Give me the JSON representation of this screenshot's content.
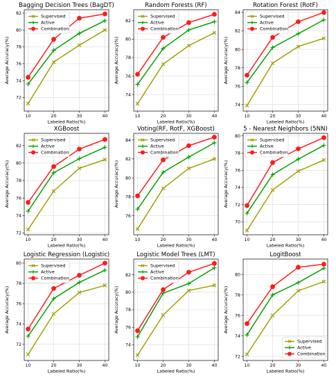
{
  "colors": {
    "Supervised": "#a0a000",
    "Active": "#00a000",
    "Combination": "#ff1a1a"
  },
  "chart_data": [
    {
      "type": "line",
      "title": "Bagging Decision Trees (BagDT)",
      "xlabel": "Labeled Ratio(%)",
      "ylabel": "Average Accuracy(%)",
      "x": [
        10,
        20,
        30,
        40
      ],
      "xticks": [
        10,
        20,
        30,
        40
      ],
      "ylim": [
        70.4,
        82.4
      ],
      "yticks": [
        72,
        74,
        76,
        78,
        80,
        82
      ],
      "grid": true,
      "legend": "top-left",
      "series": [
        {
          "name": "Supervised",
          "values": [
            71.3,
            76.2,
            78.2,
            80.0
          ]
        },
        {
          "name": "Active",
          "values": [
            73.6,
            77.6,
            79.6,
            81.1
          ]
        },
        {
          "name": "Combination",
          "values": [
            74.4,
            78.9,
            81.4,
            81.9
          ]
        }
      ]
    },
    {
      "type": "line",
      "title": "Random Forests (RF)",
      "xlabel": "Labeled Ratio(%)",
      "ylabel": "Average Accuracy(%)",
      "x": [
        10,
        20,
        30,
        40
      ],
      "xticks": [
        10,
        20,
        30,
        40
      ],
      "ylim": [
        72.2,
        83.2
      ],
      "yticks": [
        74,
        76,
        78,
        80,
        82
      ],
      "grid": true,
      "legend": "top-left",
      "series": [
        {
          "name": "Supervised",
          "values": [
            73.0,
            77.3,
            79.3,
            80.7
          ]
        },
        {
          "name": "Active",
          "values": [
            75.1,
            79.0,
            81.0,
            81.9
          ]
        },
        {
          "name": "Combination",
          "values": [
            76.2,
            80.2,
            81.8,
            82.7
          ]
        }
      ]
    },
    {
      "type": "line",
      "title": "Rotation Forest (RotF)",
      "xlabel": "Labeled Ratio(%)",
      "ylabel": "Average Accuracy(%)",
      "x": [
        10,
        20,
        30,
        40
      ],
      "xticks": [
        10,
        20,
        30,
        40
      ],
      "ylim": [
        73.3,
        84.3
      ],
      "yticks": [
        74,
        76,
        78,
        80,
        82,
        84
      ],
      "grid": true,
      "legend": "top-left",
      "series": [
        {
          "name": "Supervised",
          "values": [
            73.9,
            78.5,
            80.3,
            81.2
          ]
        },
        {
          "name": "Active",
          "values": [
            76.4,
            80.2,
            81.7,
            83.2
          ]
        },
        {
          "name": "Combination",
          "values": [
            77.2,
            81.3,
            83.0,
            84.0
          ]
        }
      ]
    },
    {
      "type": "line",
      "title": "XGBoost",
      "xlabel": "Labeled Ratio(%)",
      "ylabel": "Average Accuracy(%)",
      "x": [
        10,
        20,
        30,
        40
      ],
      "xticks": [
        10,
        20,
        30,
        40
      ],
      "ylim": [
        71.8,
        83.4
      ],
      "yticks": [
        72,
        74,
        76,
        78,
        80,
        82
      ],
      "grid": true,
      "legend": "top-left",
      "series": [
        {
          "name": "Supervised",
          "values": [
            72.4,
            76.8,
            79.4,
            80.4
          ]
        },
        {
          "name": "Active",
          "values": [
            74.5,
            78.9,
            80.5,
            81.8
          ]
        },
        {
          "name": "Combination",
          "values": [
            75.5,
            79.6,
            81.6,
            82.7
          ]
        }
      ]
    },
    {
      "type": "line",
      "title": "Voting(RF, RotF, XGBoost)",
      "xlabel": "Labeled Ratio(%)",
      "ylabel": "Average Accuracy(%)",
      "x": [
        10,
        20,
        30,
        40
      ],
      "xticks": [
        10,
        20,
        30,
        40
      ],
      "ylim": [
        74.0,
        84.7
      ],
      "yticks": [
        76,
        78,
        80,
        82,
        84
      ],
      "grid": true,
      "legend": "top-left",
      "series": [
        {
          "name": "Supervised",
          "values": [
            74.6,
            78.9,
            81.0,
            82.0
          ]
        },
        {
          "name": "Active",
          "values": [
            76.7,
            80.6,
            82.2,
            83.7
          ]
        },
        {
          "name": "Combination",
          "values": [
            78.1,
            81.9,
            83.4,
            84.3
          ]
        }
      ]
    },
    {
      "type": "line",
      "title": "5 - Nearest Neighbors (5NN)",
      "xlabel": "Labeled Ratio(%)",
      "ylabel": "Average Accuracy(%)",
      "x": [
        10,
        20,
        30,
        40
      ],
      "xticks": [
        10,
        20,
        30,
        40
      ],
      "ylim": [
        68.5,
        80.3
      ],
      "yticks": [
        70,
        72,
        74,
        76,
        78,
        80
      ],
      "grid": true,
      "legend": "top-left",
      "series": [
        {
          "name": "Supervised",
          "values": [
            69.0,
            73.7,
            75.9,
            77.2
          ]
        },
        {
          "name": "Active",
          "values": [
            71.0,
            75.5,
            77.3,
            78.9
          ]
        },
        {
          "name": "Combination",
          "values": [
            71.9,
            76.9,
            78.5,
            79.8
          ]
        }
      ]
    },
    {
      "type": "line",
      "title": "Logistic Regression (Logistic)",
      "xlabel": "Labeled Ratio(%)",
      "ylabel": "Average Accuracy(%)",
      "x": [
        10,
        20,
        30,
        40
      ],
      "xticks": [
        10,
        20,
        30,
        40
      ],
      "ylim": [
        70.4,
        80.4
      ],
      "yticks": [
        72,
        74,
        76,
        78,
        80
      ],
      "grid": true,
      "legend": "top-left",
      "series": [
        {
          "name": "Supervised",
          "values": [
            71.0,
            75.0,
            77.1,
            77.8
          ]
        },
        {
          "name": "Active",
          "values": [
            72.8,
            76.5,
            78.1,
            79.3
          ]
        },
        {
          "name": "Combination",
          "values": [
            73.5,
            77.5,
            78.8,
            80.0
          ]
        }
      ]
    },
    {
      "type": "line",
      "title": "Logistic Model Trees (LMT)",
      "xlabel": "Labeled Ratio(%)",
      "ylabel": "Average Accuracy(%)",
      "x": [
        10,
        20,
        30,
        40
      ],
      "xticks": [
        10,
        20,
        30,
        40
      ],
      "ylim": [
        72.2,
        83.8
      ],
      "yticks": [
        74,
        76,
        78,
        80,
        82
      ],
      "grid": true,
      "legend": "top-left",
      "series": [
        {
          "name": "Supervised",
          "values": [
            72.8,
            77.4,
            80.2,
            80.8
          ]
        },
        {
          "name": "Active",
          "values": [
            74.9,
            79.9,
            81.0,
            82.8
          ]
        },
        {
          "name": "Combination",
          "values": [
            75.6,
            80.3,
            82.3,
            83.3
          ]
        }
      ]
    },
    {
      "type": "line",
      "title": "LogitBoost",
      "xlabel": "Labeled Ratio(%)",
      "ylabel": "Average Accuracy(%)",
      "x": [
        10,
        20,
        30,
        40
      ],
      "xticks": [
        10,
        20,
        30,
        40
      ],
      "ylim": [
        71.6,
        81.5
      ],
      "yticks": [
        72,
        74,
        76,
        78,
        80
      ],
      "grid": true,
      "legend": "bottom-right",
      "series": [
        {
          "name": "Supervised",
          "values": [
            72.2,
            76.0,
            78.4,
            79.3
          ]
        },
        {
          "name": "Active",
          "values": [
            74.1,
            78.0,
            79.2,
            80.6
          ]
        },
        {
          "name": "Combination",
          "values": [
            75.2,
            78.8,
            80.7,
            81.0
          ]
        }
      ]
    }
  ]
}
